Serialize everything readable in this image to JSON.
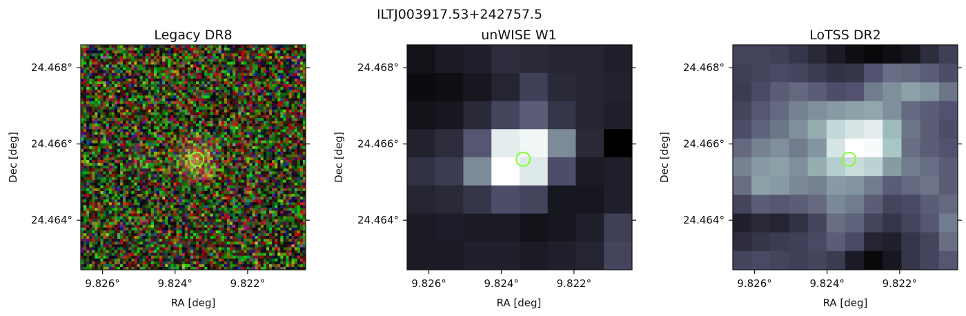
{
  "figure": {
    "suptitle": "ILTJ003917.53+242757.5"
  },
  "colors": {
    "marker": "#7fff2a",
    "axis": "#111111",
    "background": "#ffffff"
  },
  "chart_data": [
    {
      "type": "heatmap",
      "title": "Legacy DR8",
      "colormap": "rgb-composite",
      "xlabel": "RA [deg]",
      "ylabel": "Dec [deg]",
      "xlim": [
        9.8266,
        9.8204
      ],
      "ylim": [
        24.4627,
        24.4686
      ],
      "xticks": [
        9.826,
        9.824,
        9.822
      ],
      "xtick_labels": [
        "9.826°",
        "9.824°",
        "9.822°"
      ],
      "yticks": [
        24.468,
        24.466,
        24.464
      ],
      "ytick_labels": [
        "24.468°",
        "24.466°",
        "24.464°"
      ],
      "marker": {
        "shape": "circle",
        "ra": 9.8234,
        "dec": 24.4656
      },
      "pixels": {
        "nx": 80,
        "ny": 80
      }
    },
    {
      "type": "heatmap",
      "title": "unWISE W1",
      "colormap": "bone",
      "xlabel": "RA [deg]",
      "ylabel": "Dec [deg]",
      "xlim": [
        9.8266,
        9.8204
      ],
      "ylim": [
        24.4627,
        24.4686
      ],
      "xticks": [
        9.826,
        9.824,
        9.822
      ],
      "xtick_labels": [
        "9.826°",
        "9.824°",
        "9.822°"
      ],
      "yticks": [
        24.468,
        24.466,
        24.464
      ],
      "ytick_labels": [
        "24.468°",
        "24.466°",
        "24.464°"
      ],
      "marker": {
        "shape": "circle",
        "ra": 9.8234,
        "dec": 24.4656
      },
      "grid": [
        [
          0.08,
          0.12,
          0.14,
          0.2,
          0.18,
          0.16,
          0.16,
          0.14
        ],
        [
          0.05,
          0.06,
          0.1,
          0.16,
          0.28,
          0.18,
          0.16,
          0.15
        ],
        [
          0.08,
          0.1,
          0.18,
          0.3,
          0.4,
          0.24,
          0.16,
          0.14
        ],
        [
          0.15,
          0.2,
          0.38,
          0.92,
          0.96,
          0.55,
          0.18,
          0.0
        ],
        [
          0.22,
          0.26,
          0.55,
          1.0,
          0.9,
          0.34,
          0.12,
          0.14
        ],
        [
          0.16,
          0.18,
          0.24,
          0.34,
          0.3,
          0.1,
          0.1,
          0.14
        ],
        [
          0.12,
          0.13,
          0.12,
          0.12,
          0.08,
          0.1,
          0.14,
          0.28
        ],
        [
          0.12,
          0.12,
          0.14,
          0.14,
          0.12,
          0.14,
          0.16,
          0.3
        ]
      ]
    },
    {
      "type": "heatmap",
      "title": "LoTSS DR2",
      "colormap": "bone",
      "xlabel": "RA [deg]",
      "ylabel": "Dec [deg]",
      "xlim": [
        9.8266,
        9.8204
      ],
      "ylim": [
        24.4627,
        24.4686
      ],
      "xticks": [
        9.826,
        9.824,
        9.822
      ],
      "xtick_labels": [
        "9.826°",
        "9.824°",
        "9.822°"
      ],
      "yticks": [
        24.468,
        24.466,
        24.464
      ],
      "ytick_labels": [
        "24.468°",
        "24.466°",
        "24.464°"
      ],
      "marker": {
        "shape": "circle",
        "ra": 9.8234,
        "dec": 24.4656
      },
      "grid": [
        [
          0.3,
          0.3,
          0.28,
          0.24,
          0.18,
          0.12,
          0.06,
          0.04,
          0.06,
          0.1,
          0.2,
          0.28
        ],
        [
          0.28,
          0.3,
          0.32,
          0.3,
          0.26,
          0.22,
          0.24,
          0.36,
          0.46,
          0.44,
          0.4,
          0.34
        ],
        [
          0.26,
          0.32,
          0.4,
          0.44,
          0.4,
          0.34,
          0.36,
          0.5,
          0.56,
          0.62,
          0.58,
          0.48
        ],
        [
          0.3,
          0.38,
          0.44,
          0.52,
          0.56,
          0.6,
          0.62,
          0.64,
          0.56,
          0.44,
          0.4,
          0.36
        ],
        [
          0.34,
          0.42,
          0.48,
          0.56,
          0.66,
          0.82,
          0.88,
          0.92,
          0.7,
          0.48,
          0.4,
          0.34
        ],
        [
          0.44,
          0.52,
          0.56,
          0.5,
          0.58,
          0.88,
          1.0,
          0.98,
          0.74,
          0.46,
          0.4,
          0.36
        ],
        [
          0.52,
          0.6,
          0.62,
          0.56,
          0.66,
          0.78,
          0.84,
          0.8,
          0.6,
          0.5,
          0.46,
          0.4
        ],
        [
          0.46,
          0.62,
          0.6,
          0.54,
          0.52,
          0.6,
          0.58,
          0.5,
          0.4,
          0.44,
          0.48,
          0.4
        ],
        [
          0.3,
          0.4,
          0.38,
          0.4,
          0.44,
          0.54,
          0.5,
          0.4,
          0.3,
          0.32,
          0.4,
          0.44
        ],
        [
          0.14,
          0.18,
          0.16,
          0.22,
          0.3,
          0.46,
          0.42,
          0.3,
          0.24,
          0.3,
          0.38,
          0.5
        ],
        [
          0.2,
          0.24,
          0.26,
          0.28,
          0.32,
          0.4,
          0.32,
          0.16,
          0.14,
          0.24,
          0.3,
          0.46
        ],
        [
          0.3,
          0.32,
          0.3,
          0.28,
          0.3,
          0.26,
          0.12,
          0.04,
          0.1,
          0.24,
          0.3,
          0.38
        ]
      ]
    }
  ]
}
